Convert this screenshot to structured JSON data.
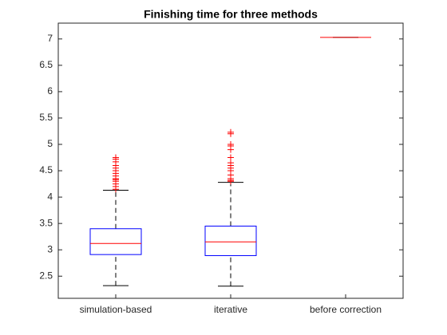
{
  "chart_data": {
    "type": "box",
    "title": "Finishing time for three methods",
    "categories": [
      "simulation-based",
      "iterative",
      "before correction"
    ],
    "boxes": [
      {
        "min": 2.32,
        "q1": 2.91,
        "median": 3.12,
        "q3": 3.4,
        "max": 4.13,
        "outliers": [
          4.15,
          4.2,
          4.25,
          4.3,
          4.33,
          4.35,
          4.4,
          4.45,
          4.5,
          4.55,
          4.6,
          4.67,
          4.72,
          4.75
        ]
      },
      {
        "min": 2.31,
        "q1": 2.89,
        "median": 3.15,
        "q3": 3.45,
        "max": 4.28,
        "outliers": [
          4.3,
          4.32,
          4.35,
          4.42,
          4.5,
          4.55,
          4.6,
          4.65,
          4.75,
          4.9,
          4.97,
          5.0,
          5.2,
          5.23
        ]
      },
      {
        "min": 7.03,
        "q1": 7.03,
        "median": 7.03,
        "q3": 7.03,
        "max": 7.03,
        "outliers": []
      }
    ],
    "ylim": [
      2.08,
      7.3
    ],
    "yticks": [
      2.5,
      3,
      3.5,
      4,
      4.5,
      5,
      5.5,
      6,
      6.5,
      7
    ],
    "box_color": "#0000ff",
    "median_color": "#ff0000",
    "whisker_color": "#000000",
    "outlier_color": "#ff0000"
  }
}
